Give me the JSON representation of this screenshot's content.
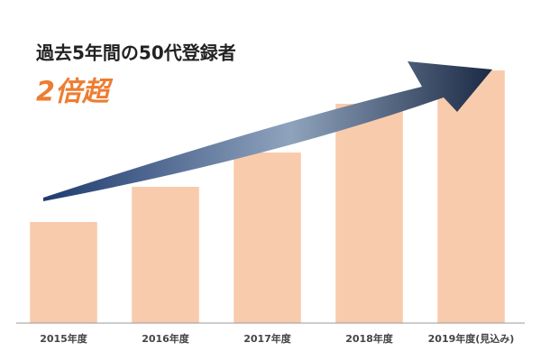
{
  "chart_data": {
    "type": "bar",
    "title": "過去5年間の50代登録者",
    "subtitle": "2倍超",
    "categories": [
      "2015年度",
      "2016年度",
      "2017年度",
      "2018年度",
      "2019年度(見込み)"
    ],
    "values": [
      112,
      151,
      189,
      243,
      280
    ],
    "color": "#f8cbad",
    "ylim": [
      0,
      300
    ]
  }
}
